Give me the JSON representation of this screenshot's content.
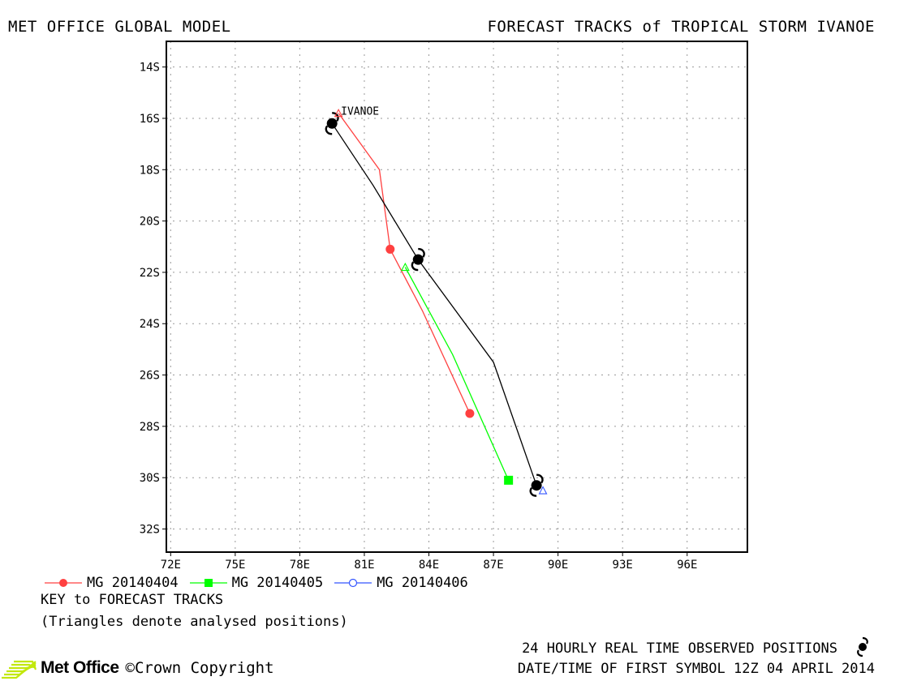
{
  "header": {
    "left_title": "MET OFFICE GLOBAL MODEL",
    "right_title": "FORECAST TRACKS of TROPICAL STORM IVANOE"
  },
  "chart_data": {
    "type": "line",
    "title": "FORECAST TRACKS of TROPICAL STORM IVANOE",
    "xlabel": "",
    "ylabel": "",
    "xlim": [
      71.8,
      98.8
    ],
    "ylim": [
      -13.0,
      -32.9
    ],
    "x_ticks": [
      "72E",
      "75E",
      "78E",
      "81E",
      "84E",
      "87E",
      "90E",
      "93E",
      "96E"
    ],
    "y_ticks": [
      "14S",
      "16S",
      "18S",
      "20S",
      "22S",
      "24S",
      "26S",
      "28S",
      "30S",
      "32S"
    ],
    "grid": true,
    "storm_label": "IVANOE",
    "series": [
      {
        "name": "MG 20140404",
        "color": "#ff4040",
        "marker": "circle-filled",
        "points": [
          [
            79.8,
            -15.8
          ],
          [
            81.7,
            -18.0
          ],
          [
            82.2,
            -21.1
          ],
          [
            83.7,
            -23.5
          ],
          [
            85.9,
            -27.5
          ]
        ],
        "markers": [
          [
            82.2,
            -21.1
          ],
          [
            85.9,
            -27.5
          ]
        ]
      },
      {
        "name": "MG 20140405",
        "color": "#00ff00",
        "marker": "square-filled",
        "points": [
          [
            82.9,
            -21.8
          ],
          [
            85.1,
            -25.2
          ],
          [
            87.7,
            -30.1
          ]
        ],
        "markers": [
          [
            87.7,
            -30.1
          ]
        ]
      },
      {
        "name": "MG 20140406",
        "color": "#3355ff",
        "marker": "circle-open",
        "points": [
          [
            89.2,
            -30.5
          ]
        ],
        "markers": []
      },
      {
        "name": "Observed",
        "color": "#000000",
        "marker": "cyclone",
        "points": [
          [
            79.5,
            -16.2
          ],
          [
            81.4,
            -18.6
          ],
          [
            83.5,
            -21.5
          ],
          [
            87.0,
            -25.5
          ],
          [
            89.0,
            -30.3
          ]
        ],
        "markers": [
          [
            79.5,
            -16.2
          ],
          [
            83.5,
            -21.5
          ],
          [
            89.0,
            -30.3
          ]
        ]
      }
    ],
    "analysed_triangles": [
      {
        "x": 79.8,
        "y": -15.8,
        "color": "#ff4040"
      },
      {
        "x": 82.9,
        "y": -21.8,
        "color": "#00ff00"
      },
      {
        "x": 89.3,
        "y": -30.5,
        "color": "#3355ff"
      }
    ]
  },
  "legend": {
    "items": [
      {
        "label": "MG 20140404",
        "color": "#ff4040",
        "marker": "circle-filled"
      },
      {
        "label": "MG 20140405",
        "color": "#00ff00",
        "marker": "square-filled"
      },
      {
        "label": "MG 20140406",
        "color": "#3355ff",
        "marker": "circle-open"
      }
    ],
    "key_title": "KEY to FORECAST TRACKS",
    "key_note": "(Triangles denote analysed positions)"
  },
  "footer": {
    "observed": "24 HOURLY REAL TIME OBSERVED POSITIONS",
    "datetime": "DATE/TIME OF FIRST SYMBOL 12Z 04 APRIL 2014",
    "brand": "Met Office",
    "copyright": "©Crown Copyright",
    "brand_color": "#c2e80c"
  }
}
